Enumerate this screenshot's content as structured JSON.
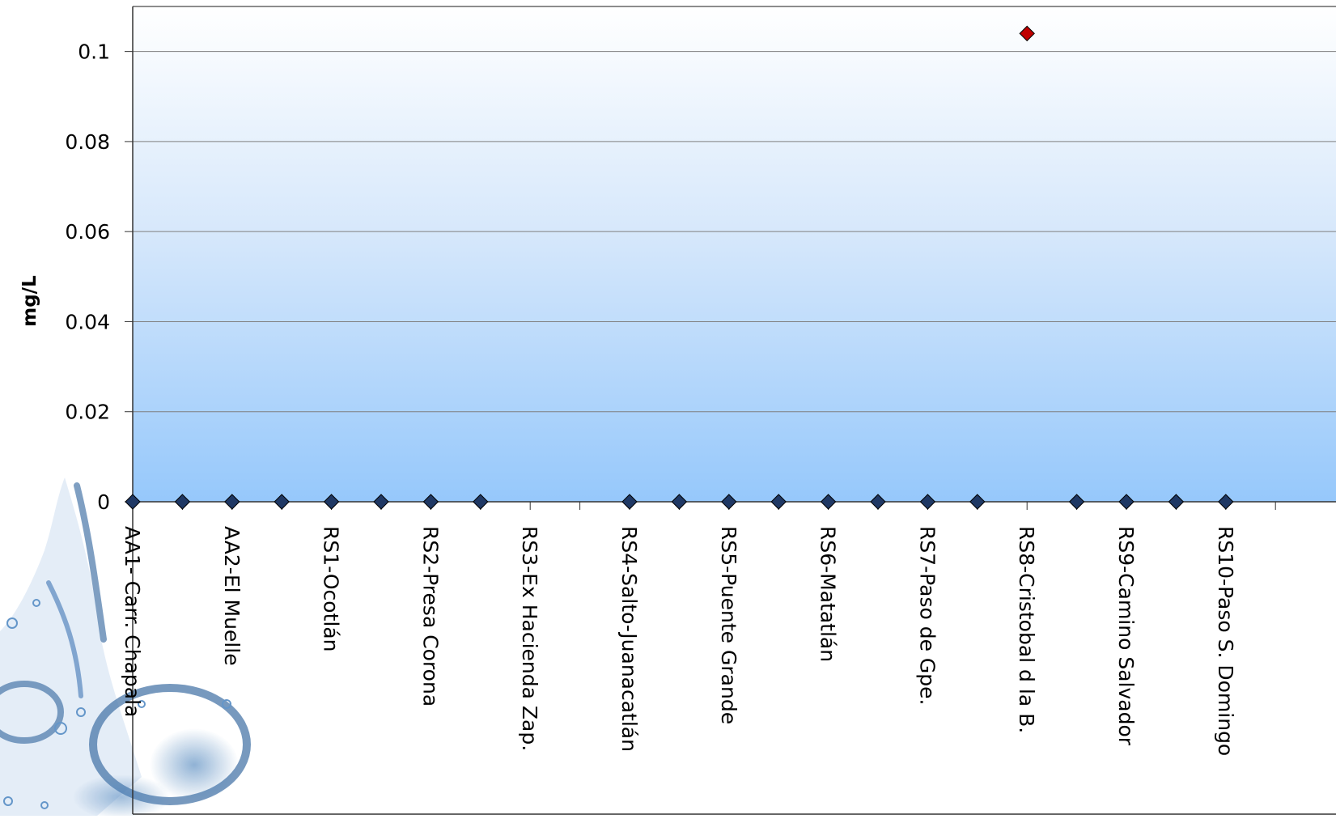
{
  "chart_data": {
    "type": "scatter",
    "title": "",
    "xlabel": "",
    "ylabel": "mg/L",
    "ylim": [
      0,
      0.11
    ],
    "yticks": [
      0,
      0.02,
      0.04,
      0.06,
      0.08,
      0.1
    ],
    "ytick_labels": [
      "0",
      "0.02",
      "0.04",
      "0.06",
      "0.08",
      "0.1"
    ],
    "grid": true,
    "category_labels": [
      "AA1- Carr. Chapala",
      "AA2-El Muelle",
      "RS1-Ocotlán",
      "RS2-Presa Corona",
      "RS3-Ex Hacienda Zap.",
      "RS4-Salto-Juanacatlán",
      "RS5-Puente Grande",
      "RS6-Matatlán",
      "RS7-Paso de Gpe.",
      "RS8-Cristobal d la B.",
      "RS9-Camino Salvador",
      "RS10-Paso S. Domingo"
    ],
    "series": [
      {
        "marker": "diamond",
        "color": "#1f3864",
        "points": [
          {
            "x": 0,
            "y": 0
          },
          {
            "x": 0.5,
            "y": 0
          },
          {
            "x": 1,
            "y": 0
          },
          {
            "x": 1.5,
            "y": 0
          },
          {
            "x": 2,
            "y": 0
          },
          {
            "x": 2.5,
            "y": 0
          },
          {
            "x": 3,
            "y": 0
          },
          {
            "x": 3.5,
            "y": 0
          },
          {
            "x": 5,
            "y": 0
          },
          {
            "x": 5.5,
            "y": 0
          },
          {
            "x": 6,
            "y": 0
          },
          {
            "x": 6.5,
            "y": 0
          },
          {
            "x": 7,
            "y": 0
          },
          {
            "x": 7.5,
            "y": 0
          },
          {
            "x": 8,
            "y": 0
          },
          {
            "x": 8.5,
            "y": 0
          },
          {
            "x": 9.5,
            "y": 0
          },
          {
            "x": 10,
            "y": 0
          },
          {
            "x": 10.5,
            "y": 0
          },
          {
            "x": 11,
            "y": 0
          }
        ]
      },
      {
        "marker": "diamond",
        "color": "#c00000",
        "points": [
          {
            "x": 9,
            "y": 0.104
          }
        ]
      }
    ]
  }
}
